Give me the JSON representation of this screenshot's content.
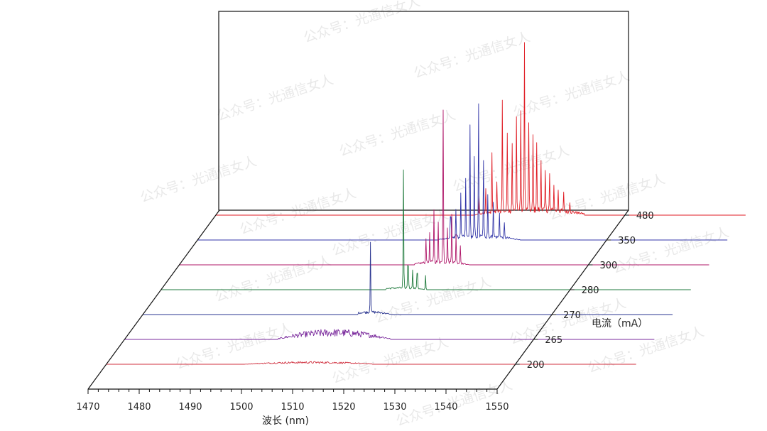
{
  "chart_data": {
    "type": "line",
    "subtype": "waterfall-3d",
    "title": "",
    "xlabel": "波长 (nm)",
    "zlabel": "电流（mA）",
    "xlim": [
      1470,
      1550
    ],
    "x_ticks": [
      1470,
      1480,
      1490,
      1500,
      1510,
      1520,
      1530,
      1540,
      1550
    ],
    "categories": [
      "200",
      "265",
      "270",
      "280",
      "300",
      "350",
      "480"
    ],
    "grid": false,
    "legend": "none",
    "series": [
      {
        "name": "200",
        "color": "#d0303f",
        "kind": "noise",
        "range": [
          1497,
          1522
        ],
        "center": 1510,
        "noise_amp": 3,
        "peaks": []
      },
      {
        "name": "265",
        "color": "#7a2a9c",
        "kind": "noise",
        "range": [
          1500,
          1522
        ],
        "center": 1511,
        "noise_amp": 11,
        "peaks": []
      },
      {
        "name": "270",
        "color": "#2a3590",
        "kind": "single-mode",
        "range": [
          1512,
          1520
        ],
        "center": 1514.5,
        "noise_amp": 4,
        "peaks": [
          [
            1514.5,
            100
          ]
        ]
      },
      {
        "name": "280",
        "color": "#1f7a3c",
        "kind": "few-mode",
        "range": [
          1514,
          1523
        ],
        "center": 1517,
        "noise_amp": 3,
        "peaks": [
          [
            1517.4,
            165
          ],
          [
            1518.3,
            32
          ],
          [
            1519.2,
            27
          ],
          [
            1520.1,
            22
          ],
          [
            1521.7,
            20
          ]
        ]
      },
      {
        "name": "300",
        "color": "#b0186a",
        "kind": "multi-mode",
        "range": [
          1516,
          1527
        ],
        "center": 1521,
        "noise_amp": 5,
        "peaks": [
          [
            1518.2,
            35
          ],
          [
            1519.0,
            40
          ],
          [
            1519.8,
            75
          ],
          [
            1520.6,
            55
          ],
          [
            1521.6,
            215
          ],
          [
            1522.4,
            50
          ],
          [
            1523.3,
            70
          ],
          [
            1524.1,
            40
          ],
          [
            1525.0,
            25
          ]
        ]
      },
      {
        "name": "350",
        "color": "#3236a8",
        "kind": "multi-mode",
        "range": [
          1517,
          1533
        ],
        "center": 1525,
        "noise_amp": 6,
        "peaks": [
          [
            1519.5,
            30
          ],
          [
            1520.5,
            40
          ],
          [
            1521.5,
            60
          ],
          [
            1522.4,
            80
          ],
          [
            1523.3,
            155
          ],
          [
            1524.1,
            110
          ],
          [
            1525.0,
            185
          ],
          [
            1525.9,
            105
          ],
          [
            1526.8,
            60
          ],
          [
            1527.8,
            50
          ],
          [
            1529.0,
            35
          ],
          [
            1530.0,
            20
          ]
        ]
      },
      {
        "name": "480",
        "color": "#e01d25",
        "kind": "multi-mode",
        "range": [
          1520,
          1542
        ],
        "center": 1532,
        "noise_amp": 9,
        "peaks": [
          [
            1521.5,
            25
          ],
          [
            1522.8,
            35
          ],
          [
            1524.0,
            85
          ],
          [
            1525.0,
            40
          ],
          [
            1526.0,
            155
          ],
          [
            1527.0,
            110
          ],
          [
            1528.0,
            95
          ],
          [
            1528.8,
            130
          ],
          [
            1529.6,
            140
          ],
          [
            1530.4,
            240
          ],
          [
            1531.2,
            120
          ],
          [
            1532.0,
            105
          ],
          [
            1532.8,
            95
          ],
          [
            1533.6,
            70
          ],
          [
            1534.4,
            55
          ],
          [
            1535.3,
            50
          ],
          [
            1536.1,
            35
          ],
          [
            1537.0,
            30
          ],
          [
            1538.0,
            25
          ],
          [
            1539.2,
            15
          ]
        ]
      }
    ]
  },
  "watermark": "公众号：光通信女人"
}
